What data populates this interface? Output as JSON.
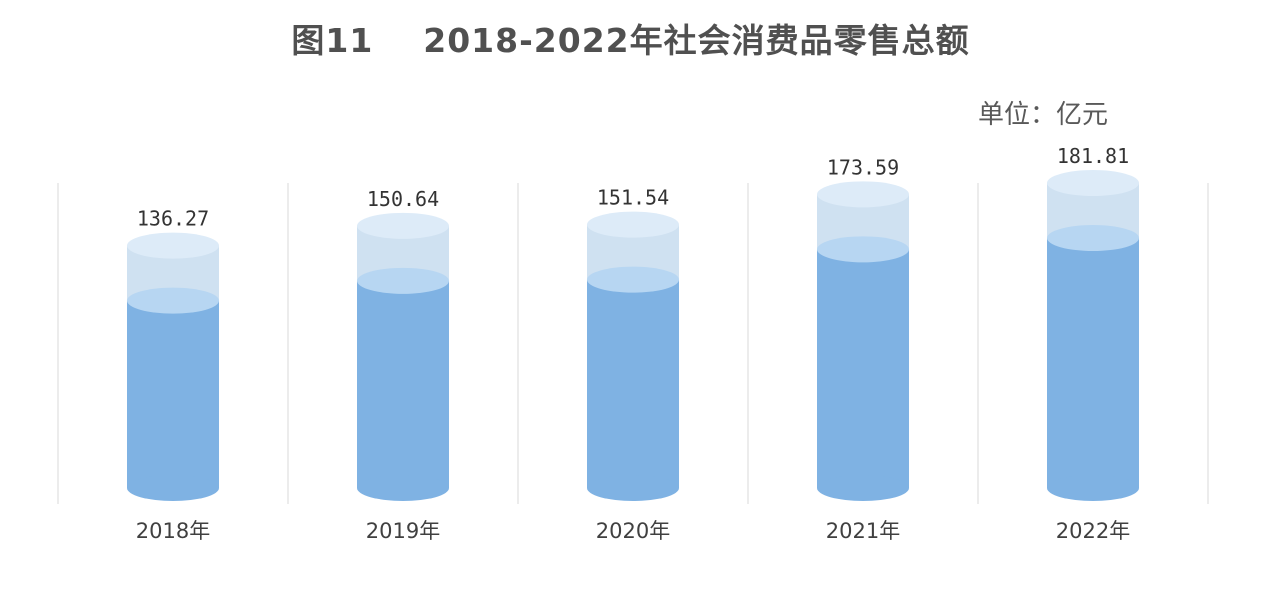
{
  "chart_data": {
    "type": "bar",
    "title": "图11    2018-2022年社会消费品零售总额",
    "unit": "单位：亿元",
    "categories": [
      "2018年",
      "2019年",
      "2020年",
      "2021年",
      "2022年"
    ],
    "values": [
      136.27,
      150.64,
      151.54,
      173.59,
      181.81
    ],
    "value_labels": [
      "136.27",
      "150.64",
      "151.54",
      "173.59",
      "181.81"
    ],
    "ylim": [
      0,
      200
    ],
    "grid": true,
    "legend": "none",
    "colors": {
      "body": "#7fb2e3",
      "top_ellipse": "#b7d6f2",
      "glass": "#cfe1f1",
      "glass_top": "#ddebf8",
      "gridline": "#e6e6e6"
    }
  }
}
